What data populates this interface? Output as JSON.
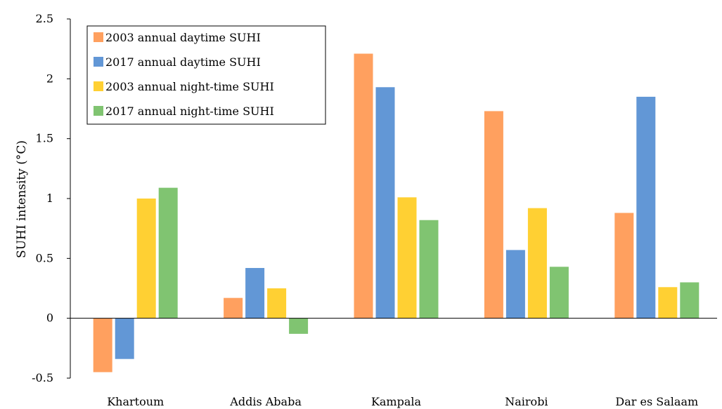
{
  "chart_data": {
    "type": "bar",
    "title": "",
    "xlabel": "",
    "ylabel": "SUHI intensity (°C)",
    "ylim": [
      -0.5,
      2.5
    ],
    "yticks": [
      -0.5,
      0,
      0.5,
      1,
      1.5,
      2,
      2.5
    ],
    "ytick_labels": [
      "-0.5",
      "0",
      "0.5",
      "1",
      "1.5",
      "2",
      "2.5"
    ],
    "grid": false,
    "legend_position": "top-left",
    "categories": [
      "Khartoum",
      "Addis Ababa",
      "Kampala",
      "Nairobi",
      "Dar es Salaam"
    ],
    "series": [
      {
        "name": "2003 annual daytime SUHI",
        "color": "#FFA05F",
        "values": [
          -0.45,
          0.17,
          2.21,
          1.73,
          0.88
        ]
      },
      {
        "name": "2017 annual daytime SUHI",
        "color": "#6297D6",
        "values": [
          -0.34,
          0.42,
          1.93,
          0.57,
          1.85
        ]
      },
      {
        "name": "2003 annual night-time SUHI",
        "color": "#FFD033",
        "values": [
          1.0,
          0.25,
          1.01,
          0.92,
          0.26
        ]
      },
      {
        "name": "2017 annual night-time SUHI",
        "color": "#80C471",
        "values": [
          1.09,
          -0.13,
          0.82,
          0.43,
          0.3
        ]
      }
    ]
  }
}
